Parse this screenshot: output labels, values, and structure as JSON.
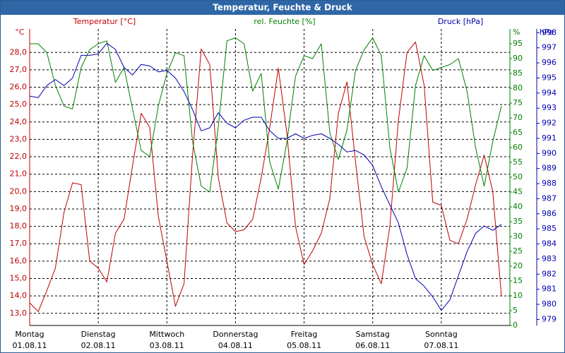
{
  "chart_data": {
    "type": "line",
    "title": "Temperatur, Feuchte & Druck",
    "ylabel": "°C",
    "y2label": "%",
    "y3label": "hPa",
    "xlim": [
      0,
      168
    ],
    "xticks": [
      {
        "value": 0,
        "label": "Montag",
        "date": "01.08.11"
      },
      {
        "value": 24,
        "label": "Dienstag",
        "date": "02.08.11"
      },
      {
        "value": 48,
        "label": "Mittwoch",
        "date": "03.08.11"
      },
      {
        "value": 72,
        "label": "Donnerstag",
        "date": "04.08.11"
      },
      {
        "value": 96,
        "label": "Freitag",
        "date": "05.08.11"
      },
      {
        "value": 120,
        "label": "Samstag",
        "date": "06.08.11"
      },
      {
        "value": 144,
        "label": "Sonntag",
        "date": "07.08.11"
      }
    ],
    "ylim": [
      12.3,
      29.35
    ],
    "yticks": [
      {
        "value": 13,
        "label": "13,0"
      },
      {
        "value": 14,
        "label": "14,0"
      },
      {
        "value": 15,
        "label": "15,0"
      },
      {
        "value": 16,
        "label": "16,0"
      },
      {
        "value": 17,
        "label": "17,0"
      },
      {
        "value": 18,
        "label": "18,0"
      },
      {
        "value": 19,
        "label": "19,0"
      },
      {
        "value": 20,
        "label": "20,0"
      },
      {
        "value": 21,
        "label": "21,0"
      },
      {
        "value": 22,
        "label": "22,0"
      },
      {
        "value": 23,
        "label": "23,0"
      },
      {
        "value": 24,
        "label": "24,0"
      },
      {
        "value": 25,
        "label": "25,0"
      },
      {
        "value": 26,
        "label": "26,0"
      },
      {
        "value": 27,
        "label": "27,0"
      },
      {
        "value": 28,
        "label": "28,0"
      }
    ],
    "y2lim": [
      0,
      100
    ],
    "y2ticks": [
      0,
      5,
      10,
      15,
      20,
      25,
      30,
      35,
      40,
      45,
      50,
      55,
      60,
      65,
      70,
      75,
      80,
      85,
      90,
      95
    ],
    "y3lim": [
      978.6,
      998.25
    ],
    "y3ticks": [
      979,
      980,
      981,
      982,
      983,
      984,
      985,
      986,
      987,
      988,
      989,
      990,
      991,
      992,
      993,
      994,
      995,
      996,
      997,
      998
    ],
    "grid": true,
    "x": [
      0,
      3,
      6,
      9,
      12,
      15,
      18,
      21,
      24,
      27,
      30,
      33,
      36,
      39,
      42,
      45,
      48,
      51,
      54,
      57,
      60,
      63,
      66,
      69,
      72,
      75,
      78,
      81,
      84,
      87,
      90,
      93,
      96,
      99,
      102,
      105,
      108,
      111,
      114,
      117,
      120,
      123,
      126,
      129,
      132,
      135,
      138,
      141,
      144,
      147,
      150,
      153,
      156,
      159,
      162,
      165
    ],
    "series": [
      {
        "name": "Temperatur [°C]",
        "color": "#c00000",
        "axis": "y",
        "values": [
          13.6,
          13.1,
          14.3,
          15.6,
          18.8,
          20.5,
          20.4,
          16.0,
          15.6,
          14.8,
          17.6,
          18.4,
          21.5,
          24.5,
          23.7,
          18.6,
          16.0,
          13.4,
          14.7,
          22.1,
          28.2,
          27.3,
          20.8,
          18.2,
          17.7,
          17.8,
          18.4,
          20.8,
          23.7,
          27.1,
          23.3,
          18.0,
          15.8,
          16.6,
          17.6,
          19.6,
          24.5,
          26.3,
          21.7,
          17.4,
          15.8,
          14.7,
          18.0,
          24.1,
          28.0,
          28.6,
          26.1,
          19.4,
          19.2,
          17.2,
          17.0,
          18.4,
          20.4,
          22.1,
          20.0,
          14.0
        ]
      },
      {
        "name": "rel. Feuchte [%]",
        "color": "#008000",
        "axis": "y2",
        "values": [
          95,
          95,
          92,
          81,
          74,
          73,
          87,
          93,
          95,
          96,
          82,
          87,
          73,
          59,
          57,
          74,
          85,
          92,
          91,
          62,
          47,
          45,
          67,
          96,
          97,
          95,
          79,
          85,
          55,
          46,
          62,
          84,
          91,
          90,
          95,
          65,
          56,
          66,
          86,
          93,
          97,
          91,
          60,
          45,
          53,
          81,
          91,
          86,
          87,
          88,
          90,
          79,
          60,
          47,
          62,
          74
        ]
      },
      {
        "name": "Druck [hPa]",
        "color": "#0000b0",
        "axis": "y3",
        "values": [
          993.8,
          993.7,
          994.5,
          994.9,
          994.5,
          995.0,
          996.5,
          996.5,
          996.6,
          997.3,
          996.9,
          995.7,
          995.2,
          995.9,
          995.8,
          995.4,
          995.5,
          995.0,
          994.1,
          992.9,
          991.5,
          991.7,
          992.7,
          992.0,
          991.7,
          992.2,
          992.4,
          992.4,
          991.5,
          991.0,
          991.0,
          991.3,
          991.0,
          991.2,
          991.3,
          991.0,
          990.6,
          990.1,
          990.2,
          989.9,
          989.2,
          987.8,
          986.6,
          985.4,
          983.3,
          981.7,
          981.2,
          980.5,
          979.6,
          980.3,
          981.9,
          983.5,
          984.7,
          985.2,
          984.9,
          985.3
        ]
      }
    ]
  }
}
